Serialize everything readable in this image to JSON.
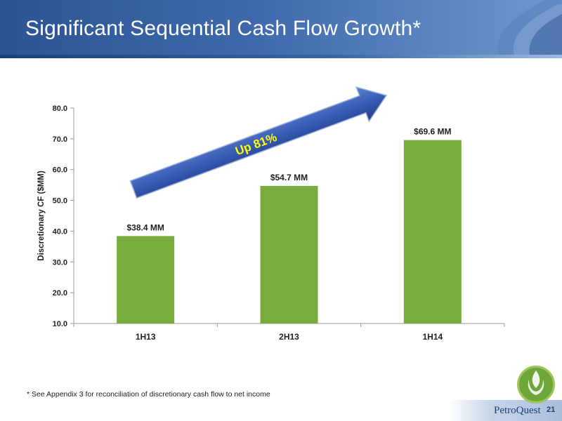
{
  "slide": {
    "title": "Significant Sequential Cash Flow Growth*",
    "footnote": "*   See Appendix 3 for reconciliation of discretionary cash flow to net income",
    "page_number": "21",
    "logo_text": "PetroQuest"
  },
  "colors": {
    "bar": "#78ac3c",
    "arrow": "#3558b0",
    "arrow_text": "#ffff00",
    "header": "#2c5493"
  },
  "chart_data": {
    "type": "bar",
    "title": "",
    "xlabel": "",
    "ylabel": "Discretionary CF ($MM)",
    "categories": [
      "1H13",
      "2H13",
      "1H14"
    ],
    "values": [
      38.4,
      54.7,
      69.6
    ],
    "data_labels": [
      "$38.4 MM",
      "$54.7 MM",
      "$69.6 MM"
    ],
    "ylim": [
      10,
      80
    ],
    "yticks": [
      "10.0",
      "20.0",
      "30.0",
      "40.0",
      "50.0",
      "60.0",
      "70.0",
      "80.0"
    ],
    "grid": false,
    "legend": "none",
    "annotation": "Up 81%"
  }
}
